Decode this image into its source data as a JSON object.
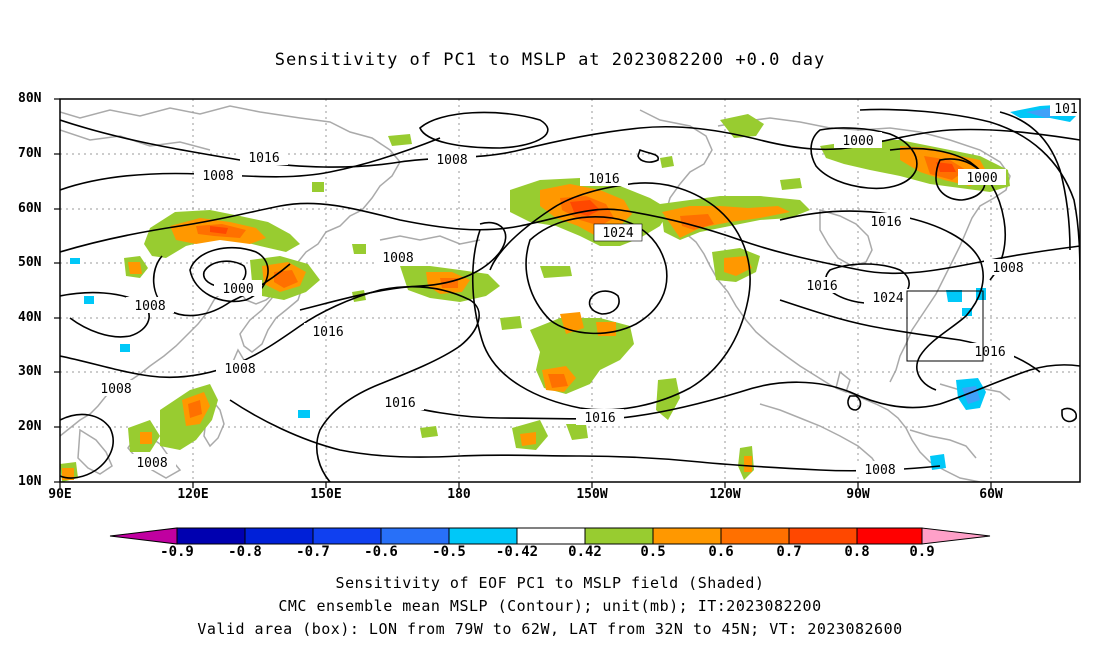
{
  "title": "Sensitivity of PC1 to MSLP at 2023082200 +0.0 day",
  "lat_labels": [
    "80N",
    "70N",
    "60N",
    "50N",
    "40N",
    "30N",
    "20N",
    "10N"
  ],
  "lon_labels": [
    "90E",
    "120E",
    "150E",
    "180",
    "150W",
    "120W",
    "90W",
    "60W"
  ],
  "colorbar": {
    "labels": [
      "-0.9",
      "-0.8",
      "-0.7",
      "-0.6",
      "-0.5",
      "-0.42",
      "0.42",
      "0.5",
      "0.6",
      "0.7",
      "0.8",
      "0.9"
    ],
    "colors": [
      "#c000a0",
      "#0000b0",
      "#0020d8",
      "#1040f0",
      "#2870f8",
      "#40a0f8",
      "#00c8f8",
      "#ffffff",
      "#98cc30",
      "#ff9800",
      "#ff7000",
      "#ff4800",
      "#ff0000",
      "#ffa0c8"
    ]
  },
  "contour_labels": [
    {
      "text": "1016"
    },
    {
      "text": "1008"
    },
    {
      "text": "1008"
    },
    {
      "text": "1000"
    },
    {
      "text": "1008"
    },
    {
      "text": "1016"
    },
    {
      "text": "1008"
    },
    {
      "text": "1008"
    },
    {
      "text": "1008"
    },
    {
      "text": "1016"
    },
    {
      "text": "1008"
    },
    {
      "text": "1016"
    },
    {
      "text": "1024"
    },
    {
      "text": "1016"
    },
    {
      "text": "1000"
    },
    {
      "text": "1000"
    },
    {
      "text": "1016"
    },
    {
      "text": "1008"
    },
    {
      "text": "1016"
    },
    {
      "text": "1024"
    },
    {
      "text": "1016"
    },
    {
      "text": "1008"
    },
    {
      "text": "101"
    }
  ],
  "captions": [
    "Sensitivity of EOF PC1 to MSLP field (Shaded)",
    "CMC ensemble mean MSLP (Contour); unit(mb); IT:2023082200",
    "Valid area (box): LON from 79W to 62W, LAT from 32N to 45N; VT: 2023082600"
  ]
}
